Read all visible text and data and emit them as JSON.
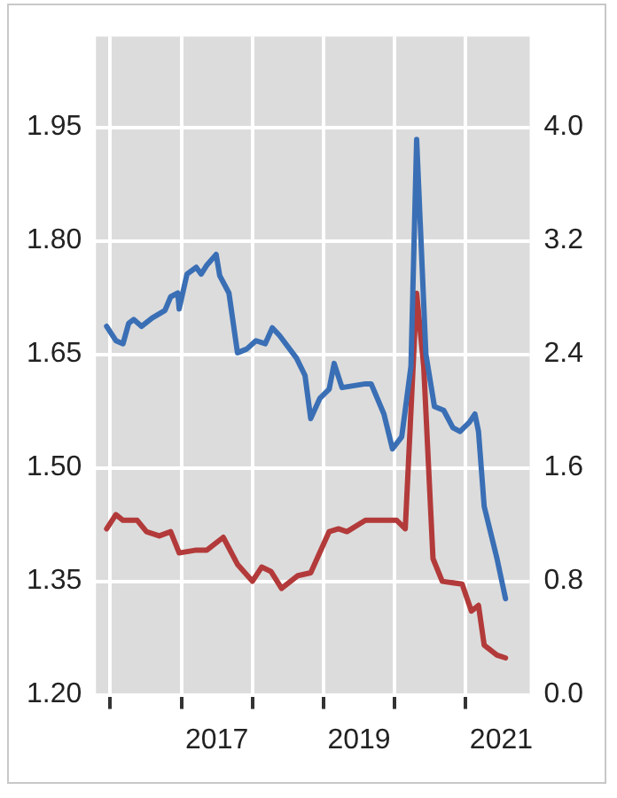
{
  "chart_data": {
    "type": "line",
    "xlim": [
      2015.8,
      2021.9
    ],
    "xticks": [
      {
        "value": 2016,
        "label": null
      },
      {
        "value": 2017,
        "label": null
      },
      {
        "value": 2017.5,
        "label": "2017"
      },
      {
        "value": 2018,
        "label": null
      },
      {
        "value": 2019,
        "label": null
      },
      {
        "value": 2019.5,
        "label": "2019"
      },
      {
        "value": 2020,
        "label": null
      },
      {
        "value": 2021,
        "label": null
      },
      {
        "value": 2021.5,
        "label": "2021"
      }
    ],
    "ylim": [
      1.2,
      2.07
    ],
    "yticks": [
      {
        "value": 1.2,
        "label": "1.20"
      },
      1.35,
      {
        "value": 1.5,
        "label": "1.50"
      },
      1.65,
      {
        "value": 1.8,
        "label": "1.80"
      },
      1.95
    ],
    "y2lim": [
      0,
      4.64
    ],
    "y2ticks": [
      {
        "value": 0,
        "label": "0.0"
      },
      0.8,
      1.6,
      2.4,
      3.2,
      {
        "value": 4,
        "label": "4.0"
      }
    ],
    "grid": true,
    "legend": false,
    "marker": "none",
    "line_style": "solid",
    "series": [
      {
        "color": "#3a6fb5",
        "x": [
          2015.95,
          2016.08,
          2016.18,
          2016.26,
          2016.33,
          2016.44,
          2016.59,
          2016.77,
          2016.85,
          2016.95,
          2016.97,
          2017.08,
          2017.21,
          2017.28,
          2017.36,
          2017.49,
          2017.54,
          2017.67,
          2017.79,
          2017.92,
          2018.05,
          2018.18,
          2018.28,
          2018.38,
          2018.62,
          2018.74,
          2018.82,
          2018.95,
          2019.08,
          2019.15,
          2019.26,
          2019.59,
          2019.67,
          2019.85,
          2019.97,
          2020.1,
          2020.23,
          2020.31,
          2020.36,
          2020.44,
          2020.56,
          2020.69,
          2020.82,
          2020.92,
          2021.05,
          2021.13,
          2021.18,
          2021.26,
          2021.44,
          2021.56
        ],
        "values": [
          1.687,
          1.668,
          1.664,
          1.691,
          1.696,
          1.687,
          1.698,
          1.708,
          1.726,
          1.731,
          1.71,
          1.756,
          1.765,
          1.756,
          1.768,
          1.782,
          1.754,
          1.731,
          1.652,
          1.657,
          1.668,
          1.664,
          1.685,
          1.675,
          1.645,
          1.622,
          1.565,
          1.592,
          1.604,
          1.638,
          1.606,
          1.611,
          1.611,
          1.571,
          1.525,
          1.541,
          1.634,
          1.934,
          1.825,
          1.65,
          1.581,
          1.576,
          1.553,
          1.548,
          1.56,
          1.571,
          1.548,
          1.449,
          1.38,
          1.327
        ]
      },
      {
        "color": "#b33a3a",
        "axis": "y2",
        "x": [
          2015.95,
          2016.08,
          2016.18,
          2016.38,
          2016.51,
          2016.69,
          2016.85,
          2016.97,
          2017.21,
          2017.36,
          2017.59,
          2017.79,
          2018.0,
          2018.13,
          2018.26,
          2018.41,
          2018.64,
          2018.82,
          2019.08,
          2019.21,
          2019.33,
          2019.59,
          2020.03,
          2020.15,
          2020.31,
          2020.41,
          2020.54,
          2020.67,
          2020.95,
          2021.08,
          2021.18,
          2021.26,
          2021.44,
          2021.56
        ],
        "values": [
          1.17,
          1.27,
          1.23,
          1.23,
          1.15,
          1.12,
          1.15,
          1.0,
          1.02,
          1.02,
          1.11,
          0.92,
          0.8,
          0.9,
          0.87,
          0.75,
          0.84,
          0.86,
          1.15,
          1.17,
          1.15,
          1.23,
          1.23,
          1.17,
          2.83,
          2.31,
          0.96,
          0.8,
          0.78,
          0.59,
          0.63,
          0.35,
          0.28,
          0.26
        ]
      }
    ]
  }
}
